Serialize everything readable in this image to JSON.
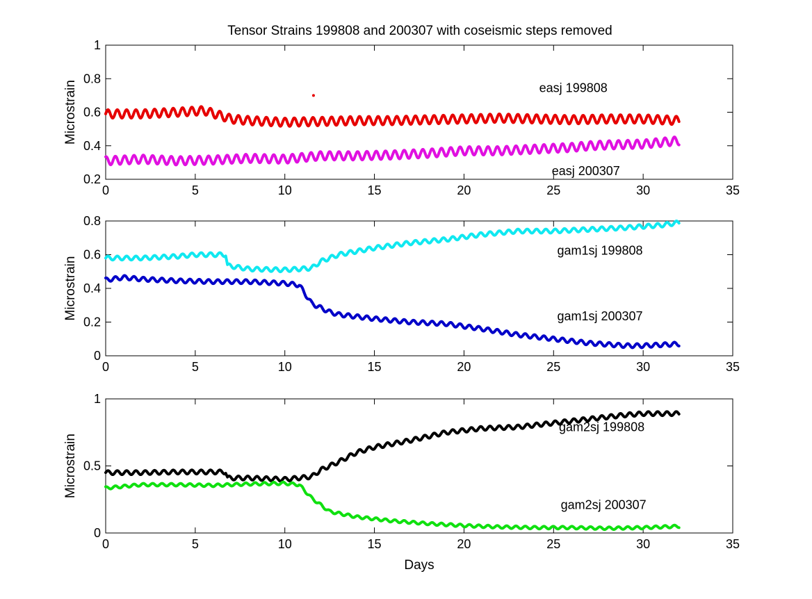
{
  "title": "Tensor Strains 199808 and 200307 with coseismic steps removed",
  "chart_data": [
    {
      "type": "scatter",
      "ylabel": "Microstrain",
      "xlabel": "",
      "xlim": [
        0,
        35
      ],
      "ylim": [
        0.2,
        1
      ],
      "xticks": [
        0,
        5,
        10,
        15,
        20,
        25,
        30,
        35
      ],
      "yticks": [
        0.2,
        0.4,
        0.6,
        0.8,
        1
      ],
      "series": [
        {
          "name": "easj 199808",
          "color": "#e60000",
          "trend": [
            [
              0,
              0.59
            ],
            [
              2,
              0.59
            ],
            [
              4,
              0.6
            ],
            [
              5.5,
              0.61
            ],
            [
              7,
              0.56
            ],
            [
              8,
              0.55
            ],
            [
              10,
              0.54
            ],
            [
              12,
              0.545
            ],
            [
              14,
              0.55
            ],
            [
              16,
              0.55
            ],
            [
              20,
              0.56
            ],
            [
              22,
              0.565
            ],
            [
              24,
              0.56
            ],
            [
              26,
              0.555
            ],
            [
              28,
              0.56
            ],
            [
              30,
              0.56
            ],
            [
              32,
              0.55
            ]
          ],
          "amplitude": 0.025,
          "period_days": 0.52,
          "outliers": [
            [
              11.6,
              0.7
            ]
          ]
        },
        {
          "name": "easj 200307",
          "color": "#e010e0",
          "trend": [
            [
              0,
              0.31
            ],
            [
              2,
              0.32
            ],
            [
              4,
              0.31
            ],
            [
              6,
              0.315
            ],
            [
              8,
              0.325
            ],
            [
              10,
              0.32
            ],
            [
              12,
              0.34
            ],
            [
              14,
              0.34
            ],
            [
              16,
              0.345
            ],
            [
              18,
              0.355
            ],
            [
              20,
              0.37
            ],
            [
              22,
              0.37
            ],
            [
              24,
              0.38
            ],
            [
              26,
              0.39
            ],
            [
              27,
              0.4
            ],
            [
              28,
              0.405
            ],
            [
              30,
              0.41
            ],
            [
              32,
              0.43
            ]
          ],
          "amplitude": 0.025,
          "period_days": 0.52,
          "outliers": []
        }
      ],
      "annotations": [
        {
          "text": "easj 199808",
          "x": 24.2,
          "y": 0.72
        },
        {
          "text": "easj 200307",
          "x": 24.9,
          "y": 0.225
        }
      ]
    },
    {
      "type": "scatter",
      "ylabel": "Microstrain",
      "xlabel": "",
      "xlim": [
        0,
        35
      ],
      "ylim": [
        0,
        0.8
      ],
      "xticks": [
        0,
        5,
        10,
        15,
        20,
        25,
        30,
        35
      ],
      "yticks": [
        0,
        0.2,
        0.4,
        0.6,
        0.8
      ],
      "series": [
        {
          "name": "gam1sj 199808",
          "color": "#10e8f0",
          "trend": [
            [
              0,
              0.58
            ],
            [
              2,
              0.58
            ],
            [
              4,
              0.59
            ],
            [
              5,
              0.6
            ],
            [
              6.7,
              0.6
            ],
            [
              6.8,
              0.535
            ],
            [
              8,
              0.515
            ],
            [
              10,
              0.51
            ],
            [
              11.5,
              0.52
            ],
            [
              12,
              0.56
            ],
            [
              13,
              0.6
            ],
            [
              15,
              0.64
            ],
            [
              17,
              0.67
            ],
            [
              19,
              0.69
            ],
            [
              21,
              0.72
            ],
            [
              23,
              0.74
            ],
            [
              25,
              0.74
            ],
            [
              27,
              0.75
            ],
            [
              29,
              0.76
            ],
            [
              31,
              0.775
            ],
            [
              32,
              0.79
            ]
          ],
          "amplitude": 0.012,
          "period_days": 0.52,
          "outliers": []
        },
        {
          "name": "gam1sj 200307",
          "color": "#0000c8",
          "trend": [
            [
              0,
              0.45
            ],
            [
              1,
              0.465
            ],
            [
              2,
              0.455
            ],
            [
              4,
              0.445
            ],
            [
              6,
              0.44
            ],
            [
              8,
              0.44
            ],
            [
              10,
              0.43
            ],
            [
              10.8,
              0.42
            ],
            [
              11.5,
              0.31
            ],
            [
              12.5,
              0.26
            ],
            [
              13,
              0.245
            ],
            [
              15,
              0.22
            ],
            [
              17,
              0.2
            ],
            [
              19,
              0.19
            ],
            [
              21,
              0.16
            ],
            [
              23,
              0.125
            ],
            [
              25,
              0.1
            ],
            [
              27,
              0.075
            ],
            [
              29,
              0.06
            ],
            [
              30,
              0.06
            ],
            [
              32,
              0.07
            ]
          ],
          "amplitude": 0.012,
          "period_days": 0.52,
          "outliers": []
        }
      ],
      "annotations": [
        {
          "text": "gam1sj 199808",
          "x": 25.2,
          "y": 0.6
        },
        {
          "text": "gam1sj 200307",
          "x": 25.2,
          "y": 0.21
        }
      ]
    },
    {
      "type": "scatter",
      "ylabel": "Microstrain",
      "xlabel": "Days",
      "xlim": [
        0,
        35
      ],
      "ylim": [
        0,
        1
      ],
      "xticks": [
        0,
        5,
        10,
        15,
        20,
        25,
        30,
        35
      ],
      "yticks": [
        0,
        0.5,
        1
      ],
      "series": [
        {
          "name": "gam2sj 199808",
          "color": "#000000",
          "trend": [
            [
              0,
              0.45
            ],
            [
              2,
              0.45
            ],
            [
              4,
              0.455
            ],
            [
              6.7,
              0.455
            ],
            [
              6.8,
              0.41
            ],
            [
              8,
              0.41
            ],
            [
              10,
              0.4
            ],
            [
              11.5,
              0.42
            ],
            [
              12,
              0.47
            ],
            [
              13,
              0.53
            ],
            [
              14,
              0.6
            ],
            [
              15,
              0.64
            ],
            [
              17,
              0.69
            ],
            [
              19,
              0.75
            ],
            [
              21,
              0.78
            ],
            [
              23,
              0.79
            ],
            [
              25,
              0.82
            ],
            [
              27,
              0.85
            ],
            [
              29,
              0.88
            ],
            [
              30,
              0.89
            ],
            [
              32,
              0.89
            ]
          ],
          "amplitude": 0.015,
          "period_days": 0.52,
          "outliers": []
        },
        {
          "name": "gam2sj 200307",
          "color": "#10e010",
          "trend": [
            [
              0,
              0.335
            ],
            [
              2,
              0.36
            ],
            [
              4,
              0.36
            ],
            [
              6,
              0.355
            ],
            [
              8,
              0.365
            ],
            [
              10,
              0.37
            ],
            [
              10.8,
              0.36
            ],
            [
              11.5,
              0.26
            ],
            [
              12.5,
              0.16
            ],
            [
              14,
              0.12
            ],
            [
              16,
              0.09
            ],
            [
              18,
              0.07
            ],
            [
              20,
              0.055
            ],
            [
              22,
              0.045
            ],
            [
              24,
              0.04
            ],
            [
              26,
              0.04
            ],
            [
              28,
              0.035
            ],
            [
              30,
              0.04
            ],
            [
              32,
              0.05
            ]
          ],
          "amplitude": 0.01,
          "period_days": 0.52,
          "outliers": []
        }
      ],
      "annotations": [
        {
          "text": "gam2sj 199808",
          "x": 25.3,
          "y": 0.76
        },
        {
          "text": "gam2sj 200307",
          "x": 25.4,
          "y": 0.18
        }
      ]
    }
  ]
}
